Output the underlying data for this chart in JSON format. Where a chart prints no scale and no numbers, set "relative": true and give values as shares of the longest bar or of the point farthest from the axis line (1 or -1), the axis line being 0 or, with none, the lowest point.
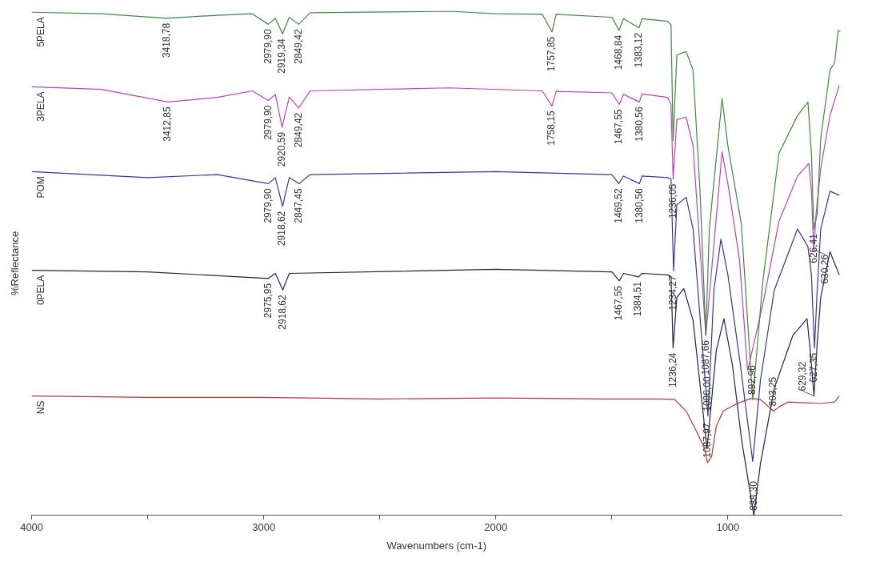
{
  "chart_data": {
    "type": "line",
    "xlabel": "Wavenumbers (cm-1)",
    "ylabel": "%Reflectance",
    "relative": true,
    "xlim": [
      4000,
      510
    ],
    "xticks": [
      4000,
      {
        "value": 3500,
        "label": null
      },
      3000,
      {
        "value": 2500,
        "label": null
      },
      2000,
      {
        "value": 1500,
        "label": null
      },
      1000
    ],
    "grid": false,
    "legend": false,
    "marker": "none",
    "series": [
      {
        "name": "5PELA",
        "color": "#3c8a3c",
        "x": [
          4000,
          3700,
          3418,
          3200,
          3050,
          2980,
          2950,
          2919,
          2890,
          2849,
          2800,
          2200,
          2000,
          1800,
          1758,
          1740,
          1500,
          1469,
          1450,
          1383,
          1370,
          1260,
          1245,
          1236,
          1220,
          1180,
          1150,
          1120,
          1095,
          1080,
          1025,
          1000,
          942,
          893,
          850,
          780,
          700,
          655,
          640,
          630,
          615,
          600,
          560,
          540,
          525,
          515
        ],
        "values": [
          0.998,
          0.995,
          0.986,
          0.992,
          0.995,
          0.974,
          0.986,
          0.955,
          0.988,
          0.974,
          0.997,
          1.0,
          0.995,
          0.994,
          0.959,
          0.994,
          0.988,
          0.962,
          0.985,
          0.967,
          0.985,
          0.98,
          0.973,
          0.743,
          0.913,
          0.92,
          0.883,
          0.643,
          0.357,
          0.568,
          0.827,
          0.733,
          0.578,
          0.23,
          0.462,
          0.718,
          0.793,
          0.82,
          0.718,
          0.568,
          0.598,
          0.748,
          0.883,
          0.898,
          0.961,
          0.961
        ]
      },
      {
        "name": "3PELA",
        "color": "#c040c0",
        "x": [
          4000,
          3700,
          3413,
          3200,
          3050,
          2980,
          2950,
          2921,
          2890,
          2849,
          2800,
          2200,
          1800,
          1758,
          1740,
          1500,
          1468,
          1450,
          1381,
          1370,
          1260,
          1245,
          1236,
          1220,
          1180,
          1150,
          1095,
          1025,
          1000,
          950,
          915,
          850,
          780,
          700,
          651,
          640,
          630,
          620,
          600,
          560,
          520
        ],
        "values": [
          0.85,
          0.845,
          0.82,
          0.829,
          0.842,
          0.823,
          0.835,
          0.77,
          0.83,
          0.808,
          0.842,
          0.848,
          0.842,
          0.812,
          0.841,
          0.838,
          0.815,
          0.835,
          0.82,
          0.836,
          0.829,
          0.815,
          0.667,
          0.785,
          0.79,
          0.733,
          0.357,
          0.721,
          0.658,
          0.508,
          0.287,
          0.417,
          0.583,
          0.673,
          0.698,
          0.643,
          0.527,
          0.598,
          0.688,
          0.793,
          0.853
        ]
      },
      {
        "name": "POM",
        "color": "#3535a8",
        "x": [
          4000,
          3500,
          3200,
          2980,
          2950,
          2919,
          2890,
          2847,
          2800,
          2000,
          1500,
          1470,
          1450,
          1381,
          1370,
          1260,
          1245,
          1234,
          1220,
          1180,
          1150,
          1086,
          1060,
          1030,
          1000,
          950,
          893,
          860,
          800,
          700,
          655,
          640,
          627,
          615,
          600,
          560,
          520
        ],
        "values": [
          0.682,
          0.67,
          0.676,
          0.658,
          0.67,
          0.613,
          0.67,
          0.658,
          0.676,
          0.682,
          0.676,
          0.658,
          0.673,
          0.658,
          0.673,
          0.67,
          0.667,
          0.485,
          0.616,
          0.631,
          0.568,
          0.197,
          0.447,
          0.548,
          0.477,
          0.312,
          0.107,
          0.267,
          0.447,
          0.568,
          0.533,
          0.477,
          0.332,
          0.447,
          0.568,
          0.643,
          0.635
        ]
      },
      {
        "name": "0PELA",
        "color": "#22224f",
        "x": [
          4000,
          3500,
          2980,
          2950,
          2918,
          2890,
          2000,
          1500,
          1468,
          1450,
          1385,
          1370,
          1260,
          1245,
          1236,
          1220,
          1190,
          1150,
          1090,
          1050,
          1017,
          980,
          940,
          888,
          860,
          800,
          720,
          659,
          645,
          629,
          615,
          600,
          560,
          520
        ],
        "values": [
          0.486,
          0.483,
          0.47,
          0.48,
          0.447,
          0.48,
          0.488,
          0.483,
          0.465,
          0.48,
          0.473,
          0.48,
          0.477,
          0.474,
          0.332,
          0.432,
          0.45,
          0.387,
          0.132,
          0.327,
          0.39,
          0.297,
          0.147,
          0.0,
          0.102,
          0.252,
          0.357,
          0.39,
          0.327,
          0.237,
          0.342,
          0.432,
          0.523,
          0.477
        ]
      },
      {
        "name": "NS",
        "color": "#c03535",
        "x": [
          4000,
          3500,
          3000,
          2500,
          2000,
          1500,
          1300,
          1230,
          1180,
          1130,
          1100,
          1088,
          1070,
          1050,
          1020,
          960,
          900,
          860,
          803,
          780,
          740,
          600,
          540,
          520
        ],
        "values": [
          0.237,
          0.234,
          0.234,
          0.231,
          0.233,
          0.231,
          0.231,
          0.23,
          0.207,
          0.162,
          0.132,
          0.105,
          0.117,
          0.177,
          0.207,
          0.222,
          0.232,
          0.23,
          0.207,
          0.215,
          0.225,
          0.222,
          0.225,
          0.237
        ]
      }
    ],
    "annotations": [
      {
        "text": "3418,78",
        "x": 3418,
        "y": 0.986
      },
      {
        "text": "2979,90",
        "x": 2980,
        "y": 0.974
      },
      {
        "text": "2919,34",
        "x": 2919,
        "y": 0.955
      },
      {
        "text": "2849,42",
        "x": 2849,
        "y": 0.974
      },
      {
        "text": "1757,85",
        "x": 1758,
        "y": 0.959
      },
      {
        "text": "1468,84",
        "x": 1469,
        "y": 0.962
      },
      {
        "text": "1383,12",
        "x": 1383,
        "y": 0.967
      },
      {
        "text": "1087,66",
        "x": 1095,
        "y": 0.357
      },
      {
        "text": "892,96",
        "x": 893,
        "y": 0.23
      },
      {
        "text": "626,41",
        "x": 630,
        "y": 0.568
      },
      {
        "text": "3412,85",
        "x": 3413,
        "y": 0.82
      },
      {
        "text": "2979,90",
        "x": 2980,
        "y": 0.823
      },
      {
        "text": "2920,59",
        "x": 2921,
        "y": 0.77
      },
      {
        "text": "2849,42",
        "x": 2849,
        "y": 0.808
      },
      {
        "text": "1758,15",
        "x": 1758,
        "y": 0.812
      },
      {
        "text": "1467,55",
        "x": 1468,
        "y": 0.815
      },
      {
        "text": "1380,56",
        "x": 1381,
        "y": 0.82
      },
      {
        "text": "1236,05",
        "x": 1236,
        "y": 0.667
      },
      {
        "text": "630,26",
        "x": 630,
        "y": 0.527
      },
      {
        "text": "2979,90",
        "x": 2980,
        "y": 0.658
      },
      {
        "text": "2918,62",
        "x": 2919,
        "y": 0.613
      },
      {
        "text": "2847,45",
        "x": 2847,
        "y": 0.658
      },
      {
        "text": "1469,52",
        "x": 1470,
        "y": 0.658
      },
      {
        "text": "1380,56",
        "x": 1381,
        "y": 0.658
      },
      {
        "text": "1234,27",
        "x": 1234,
        "y": 0.485
      },
      {
        "text": "1086,00",
        "x": 1086,
        "y": 0.197
      },
      {
        "text": "627,35",
        "x": 627,
        "y": 0.332
      },
      {
        "text": "2975,95",
        "x": 2980,
        "y": 0.47
      },
      {
        "text": "2918,62",
        "x": 2918,
        "y": 0.447
      },
      {
        "text": "1467,55",
        "x": 1468,
        "y": 0.465
      },
      {
        "text": "1384,51",
        "x": 1385,
        "y": 0.473
      },
      {
        "text": "1236,24",
        "x": 1236,
        "y": 0.332
      },
      {
        "text": "888,30",
        "x": 888,
        "y": 0.0
      },
      {
        "text": "629,32",
        "x": 629,
        "y": 0.237
      },
      {
        "text": "1087,97",
        "x": 1088,
        "y": 0.105
      },
      {
        "text": "803,25",
        "x": 803,
        "y": 0.207
      }
    ]
  }
}
